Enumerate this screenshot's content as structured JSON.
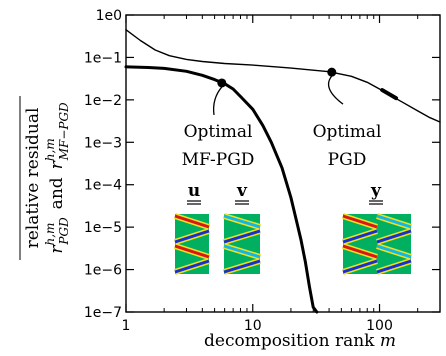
{
  "chart_data": {
    "type": "line",
    "xscale": "log",
    "yscale": "log",
    "xlim": [
      1,
      300
    ],
    "ylim": [
      1e-07,
      1
    ],
    "xticks": [
      {
        "value": 1,
        "label": "1"
      },
      {
        "value": 10,
        "label": "10"
      },
      {
        "value": 100,
        "label": "100"
      }
    ],
    "yticks": [
      {
        "value": 1,
        "label": "1e0"
      },
      {
        "value": 0.1,
        "label": "1e−1"
      },
      {
        "value": 0.01,
        "label": "1e−2"
      },
      {
        "value": 0.001,
        "label": "1e−3"
      },
      {
        "value": 0.0001,
        "label": "1e−4"
      },
      {
        "value": 1e-05,
        "label": "1e−5"
      },
      {
        "value": 1e-06,
        "label": "1e−6"
      },
      {
        "value": 1e-07,
        "label": "1e−7"
      }
    ],
    "xlabel": {
      "prefix": "decomposition rank ",
      "symbol": "m"
    },
    "ylabel": {
      "line1": "relative residual",
      "mf_symbol": "r",
      "mf_sup": "h,m",
      "mf_sub": "MF−PGD",
      "and": "and",
      "pgd_symbol": "r",
      "pgd_sup": "h,m",
      "pgd_sub": "PGD"
    },
    "grid": false,
    "series": [
      {
        "style": "thick",
        "x": [
          1,
          1.5,
          2,
          3,
          4,
          5,
          6,
          7,
          8,
          10,
          12,
          14,
          17,
          20,
          22,
          24,
          26,
          28,
          30,
          32
        ],
        "y": [
          0.06,
          0.058,
          0.055,
          0.047,
          0.038,
          0.03,
          0.024,
          0.018,
          0.012,
          0.006,
          0.0025,
          0.001,
          0.00025,
          5e-05,
          1.5e-05,
          5e-06,
          1.5e-06,
          4e-07,
          1.3e-07,
          1e-07
        ]
      },
      {
        "style": "thin",
        "x": [
          1,
          1.3,
          1.7,
          2.2,
          3,
          4,
          6,
          10,
          15,
          20,
          30,
          40,
          60,
          80,
          100,
          120,
          150,
          200,
          250,
          300
        ],
        "y": [
          0.45,
          0.25,
          0.15,
          0.11,
          0.09,
          0.08,
          0.072,
          0.066,
          0.06,
          0.056,
          0.05,
          0.046,
          0.036,
          0.026,
          0.018,
          0.013,
          0.009,
          0.0055,
          0.0038,
          0.003
        ]
      }
    ],
    "annotations": [
      {
        "x": 5.7,
        "y": 0.025,
        "line1": "Optimal",
        "line2": "MF-PGD"
      },
      {
        "x": 42,
        "y": 0.045,
        "line1": "Optimal",
        "line2": "PGD"
      }
    ],
    "insets": [
      {
        "label": "u",
        "palette": [
          "#00b060",
          "#f0e020",
          "#d81818",
          "#1830d0"
        ]
      },
      {
        "label": "v",
        "palette": [
          "#00b060",
          "#f0e020",
          "#10b8e8",
          "#1830d0"
        ]
      },
      {
        "label": "y",
        "palette": [
          "#00b060",
          "#f0e020",
          "#d81818",
          "#1830d0",
          "#10b8e8"
        ]
      }
    ]
  }
}
